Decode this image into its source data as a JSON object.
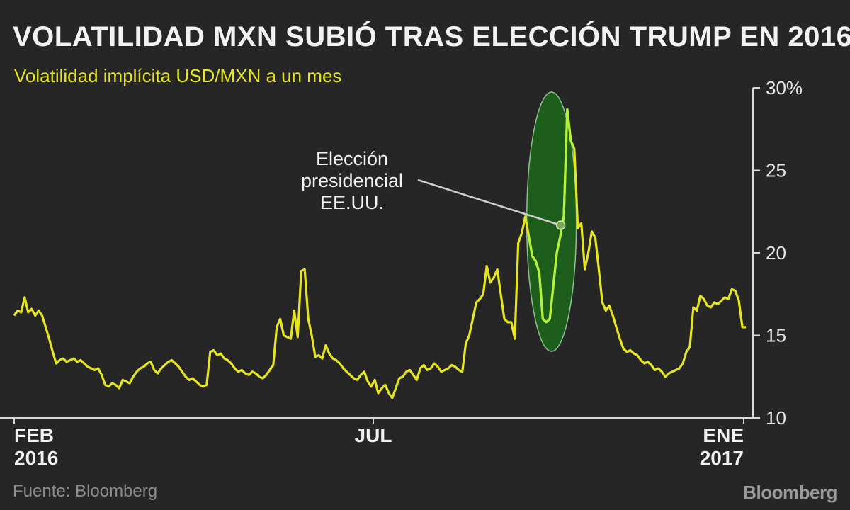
{
  "title": "VOLATILIDAD MXN SUBIÓ TRAS ELECCIÓN TRUMP EN 2016",
  "subtitle": "Volatilidad implícita USD/MXN a un mes",
  "source": "Fuente: Bloomberg",
  "brand": "Bloomberg",
  "colors": {
    "background": "#262626",
    "line": "#e5e61e",
    "highlight_line": "#b3f23a",
    "highlight_fill": "#1d5e1d",
    "text": "#f2f2f2"
  },
  "chart_data": {
    "type": "line",
    "title": "VOLATILIDAD MXN SUBIÓ TRAS ELECCIÓN TRUMP EN 2016",
    "subtitle": "Volatilidad implícita USD/MXN a un mes",
    "ylim": [
      10,
      30
    ],
    "y_ticks": [
      "30%",
      "25",
      "20",
      "15",
      "10"
    ],
    "x_labels": [
      {
        "line1": "FEB",
        "line2": "2016"
      },
      {
        "line1": "JUL",
        "line2": ""
      },
      {
        "line1": "ENE",
        "line2": "2017"
      }
    ],
    "annotation": {
      "lines": [
        "Elección",
        "presidencial",
        "EE.UU."
      ]
    },
    "grid": false,
    "series": [
      {
        "values": [
          16.2,
          16.5,
          16.4,
          17.3,
          16.4,
          16.6,
          16.2,
          16.5,
          16.2,
          15.5,
          14.8,
          14.0,
          13.3,
          13.5,
          13.6,
          13.4,
          13.5,
          13.6,
          13.4,
          13.5,
          13.3,
          13.1,
          13.0,
          12.9,
          13.0,
          12.6,
          12.0,
          11.9,
          12.1,
          12.0,
          11.8,
          12.3,
          12.2,
          12.1,
          12.5,
          12.8,
          13.0,
          13.1,
          13.3,
          13.4,
          12.9,
          12.7,
          13.0,
          13.2,
          13.4,
          13.5,
          13.3,
          13.1,
          12.8,
          12.5,
          12.3,
          12.4,
          12.2,
          12.0,
          11.9,
          12.0,
          14.0,
          14.1,
          13.8,
          13.9,
          13.6,
          13.5,
          13.3,
          13.0,
          12.8,
          12.9,
          12.7,
          12.6,
          12.8,
          12.7,
          12.5,
          12.4,
          12.6,
          12.9,
          13.2,
          15.5,
          16.0,
          15.0,
          14.9,
          14.8,
          16.5,
          14.9,
          18.9,
          19.0,
          16.0,
          15.0,
          13.7,
          13.8,
          13.6,
          14.4,
          13.9,
          13.6,
          13.5,
          13.3,
          13.0,
          12.8,
          12.6,
          12.4,
          12.3,
          12.6,
          12.8,
          12.2,
          11.9,
          12.3,
          11.5,
          11.8,
          12.0,
          11.5,
          11.2,
          11.8,
          12.4,
          12.5,
          12.8,
          12.9,
          12.6,
          12.3,
          13.0,
          13.2,
          12.9,
          13.0,
          13.3,
          13.1,
          12.8,
          12.9,
          13.0,
          13.2,
          13.1,
          12.9,
          12.8,
          14.5,
          15.0,
          16.0,
          17.0,
          17.2,
          17.5,
          19.2,
          18.2,
          18.5,
          19.0,
          17.5,
          16.0,
          15.8,
          15.8,
          14.8,
          20.6,
          21.2,
          22.2,
          21.0,
          19.8,
          19.5,
          18.8,
          16.0,
          15.8,
          16.0,
          18.0,
          20.0,
          21.0,
          22.2,
          28.7,
          26.8,
          26.3,
          21.5,
          21.8,
          19.0,
          20.0,
          21.3,
          20.9,
          19.0,
          17.0,
          16.5,
          16.8,
          16.2,
          15.5,
          14.8,
          14.2,
          14.0,
          14.1,
          13.9,
          13.8,
          13.5,
          13.3,
          13.4,
          13.2,
          12.9,
          13.0,
          12.8,
          12.5,
          12.7,
          12.8,
          12.9,
          13.0,
          13.3,
          14.0,
          14.3,
          16.7,
          16.5,
          17.4,
          17.2,
          16.8,
          16.7,
          17.0,
          16.9,
          17.1,
          17.3,
          17.2,
          17.8,
          17.7,
          17.1,
          15.5,
          15.5
        ]
      }
    ]
  }
}
